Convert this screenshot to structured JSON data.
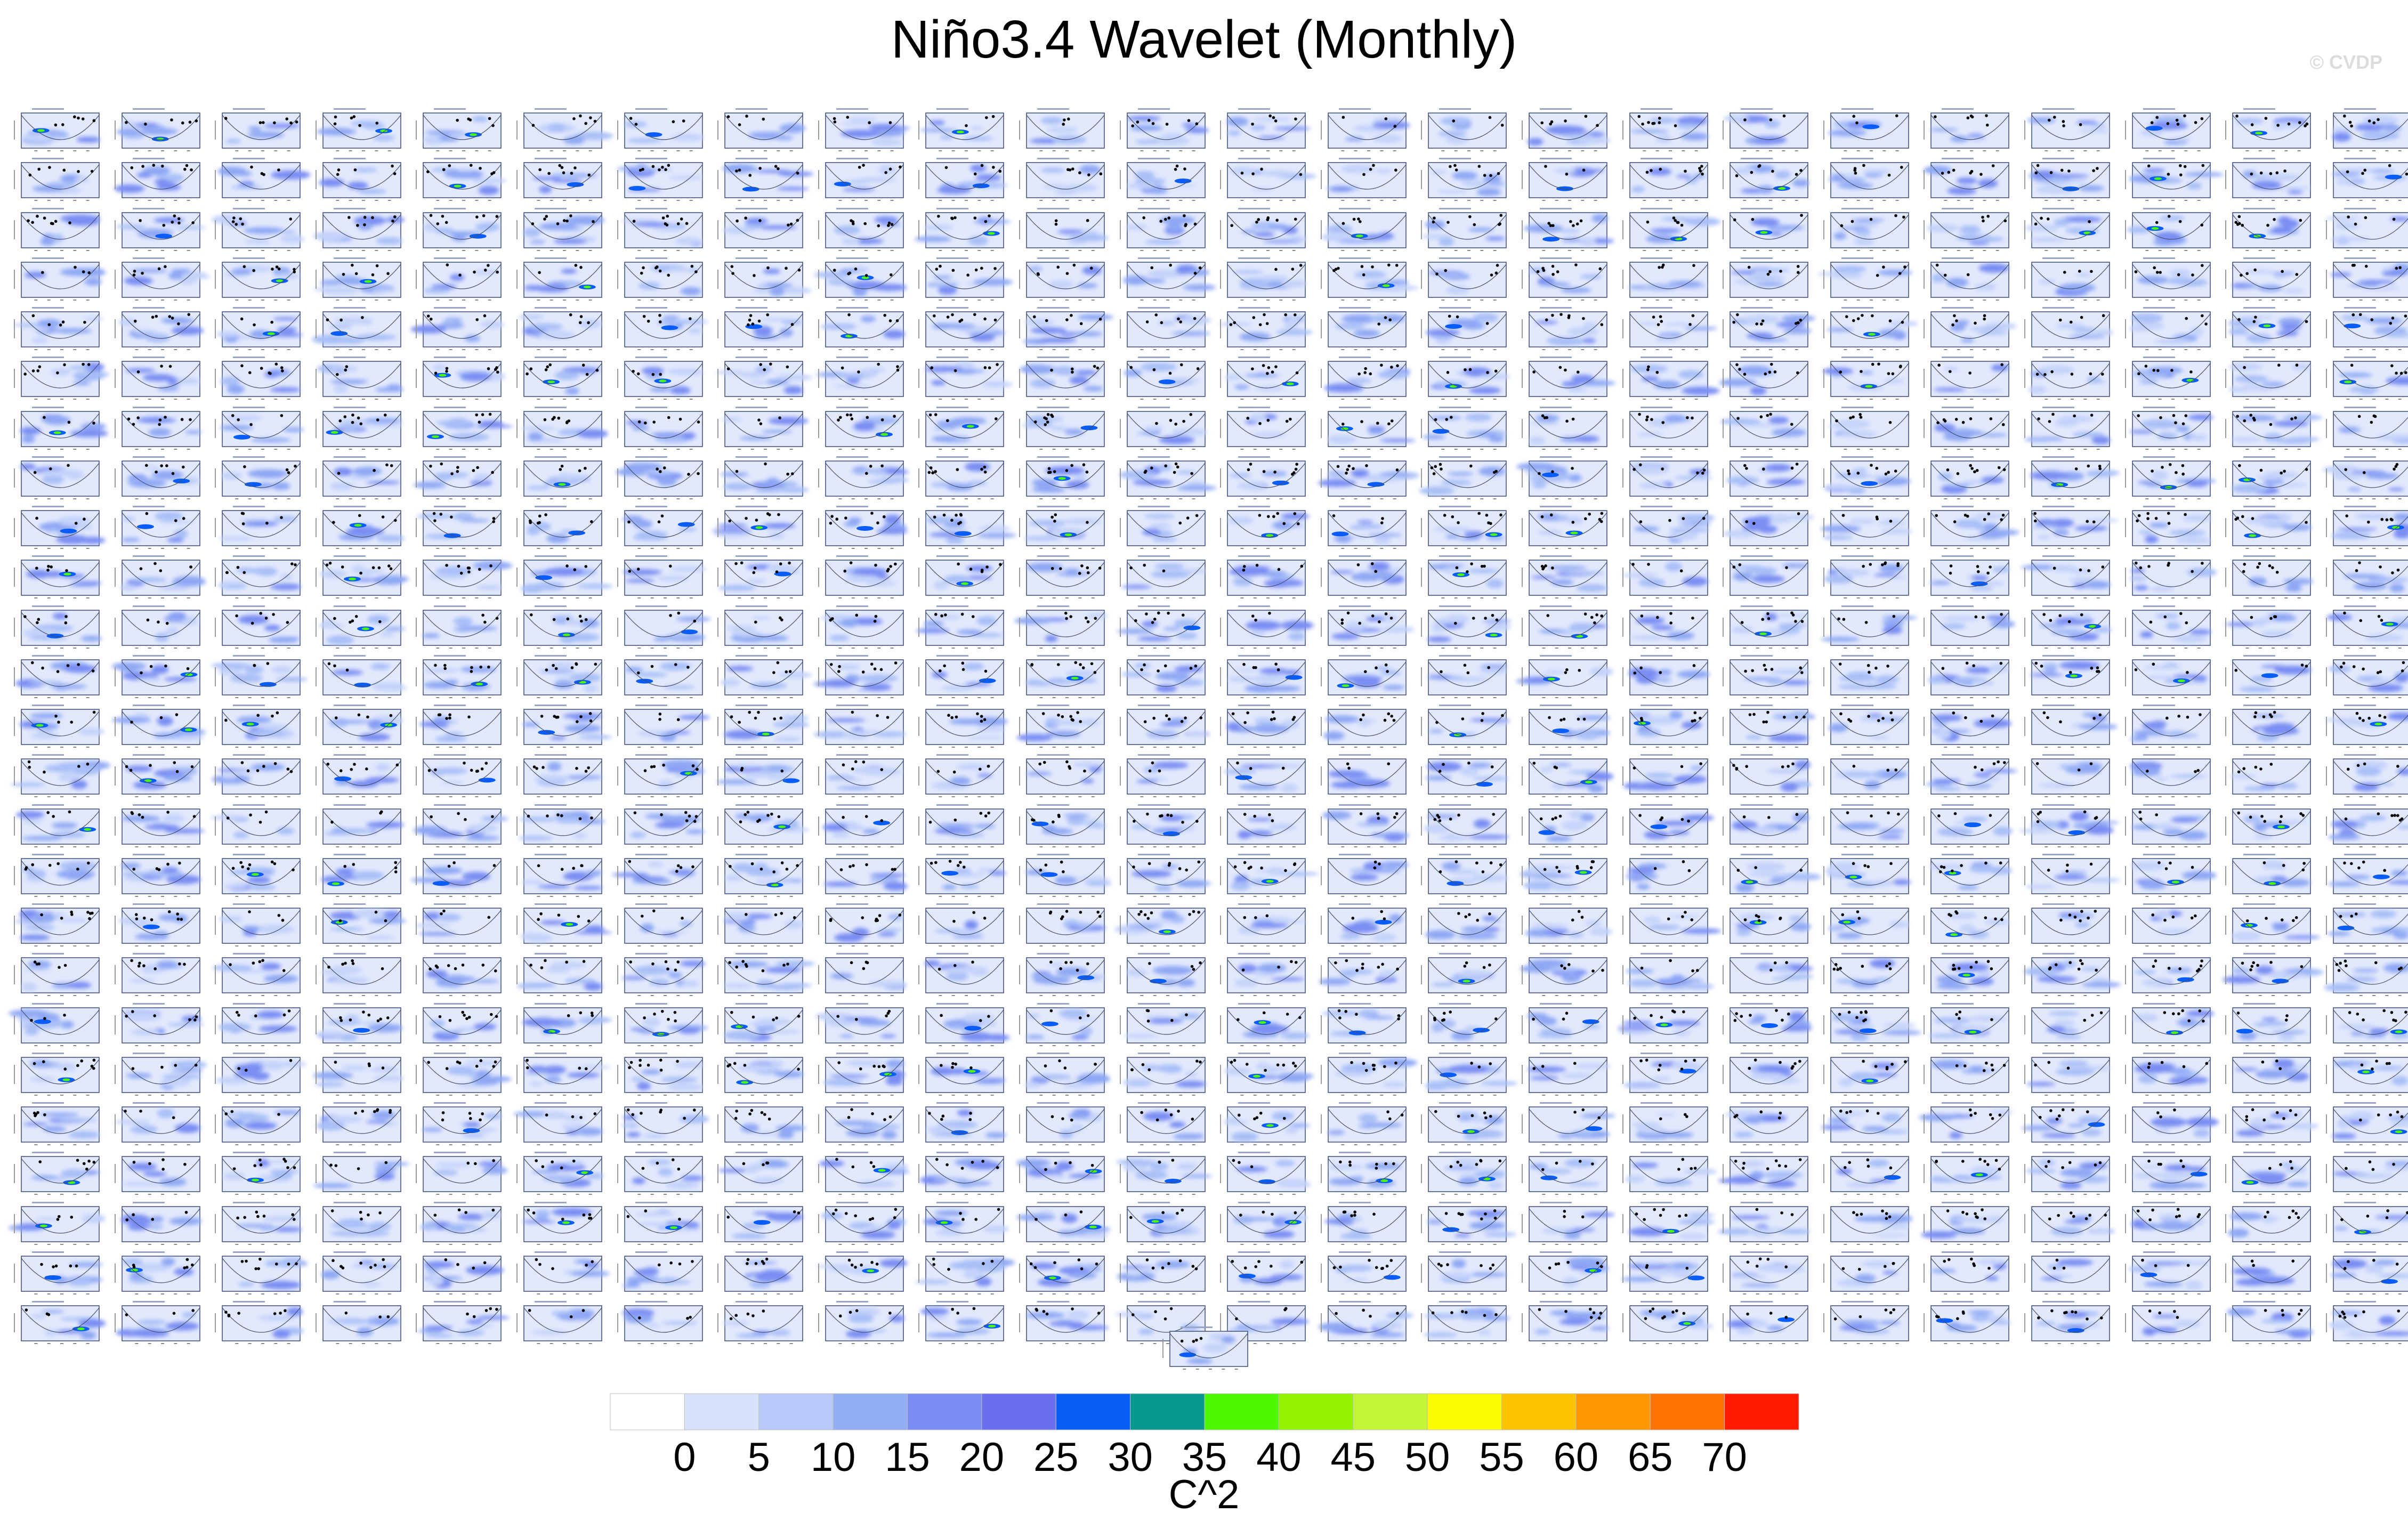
{
  "title": "Niño3.4 Wavelet (Monthly)",
  "watermark": "© CVDP",
  "colorbar": {
    "units": "C^2",
    "tick_labels": [
      "0",
      "5",
      "10",
      "15",
      "20",
      "25",
      "30",
      "35",
      "40",
      "45",
      "50",
      "55",
      "60",
      "65",
      "70"
    ],
    "colors": [
      "#ffffff",
      "#d8e2fb",
      "#b7c9f8",
      "#93aef6",
      "#7a8ef3",
      "#6a6ef0",
      "#0a5cf7",
      "#06978f",
      "#4ef900",
      "#95f500",
      "#c1f536",
      "#fbfb00",
      "#ffc200",
      "#ff9800",
      "#ff7400",
      "#ff1a00"
    ]
  },
  "chart_data": {
    "type": "heatmap",
    "layout": "small-multiples",
    "rows": 25,
    "columns": 24,
    "extra_panels": 1,
    "value_range": [
      0,
      70
    ],
    "contour_interval": 5
  }
}
